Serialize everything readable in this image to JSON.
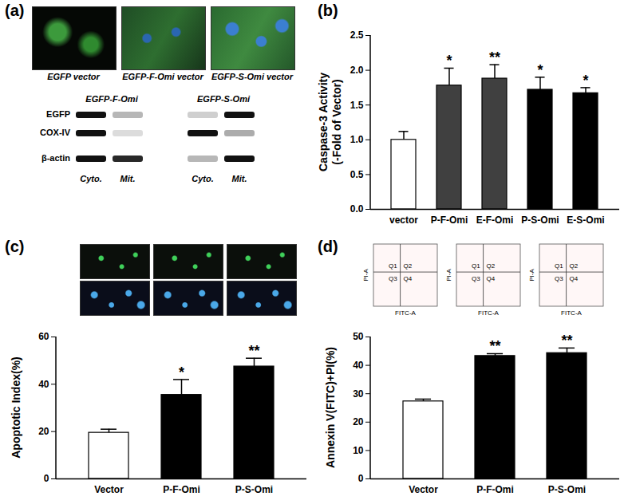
{
  "panel_labels": [
    "(a)",
    "(b)",
    "(c)",
    "(d)"
  ],
  "panel_a": {
    "image_labels": [
      "EGFP vector",
      "EGFP-F-Omi vector",
      "EGFP-S-Omi vector"
    ],
    "blot_rows": [
      "EGFP",
      "COX-IV",
      "β-actin"
    ],
    "blots": [
      {
        "title": "EGFP-F-Omi",
        "lanes": [
          "Cyto.",
          "Mit."
        ],
        "bands": [
          [
            1,
            0.3
          ],
          [
            1,
            0.15
          ],
          [
            1,
            0.9
          ]
        ]
      },
      {
        "title": "EGFP-S-Omi",
        "lanes": [
          "Cyto.",
          "Mit."
        ],
        "bands": [
          [
            0.2,
            1
          ],
          [
            1,
            0.35
          ],
          [
            0.3,
            1
          ]
        ]
      }
    ]
  },
  "flow_plots": {
    "x_label": "FITC-A",
    "y_label": "PI-A",
    "quadrants": [
      "Q1",
      "Q2",
      "Q3",
      "Q4"
    ]
  },
  "chart_data": [
    {
      "type": "bar",
      "ylabel": "Caspase-3  Activity\n(-Fold of Vector)",
      "categories": [
        "vector",
        "P-F-Omi",
        "E-F-Omi",
        "P-S-Omi",
        "E-S-Omi"
      ],
      "values": [
        1.0,
        1.78,
        1.88,
        1.72,
        1.67
      ],
      "errors": [
        0.12,
        0.25,
        0.2,
        0.18,
        0.08
      ],
      "significance": [
        null,
        "*",
        "**",
        "*",
        "*"
      ],
      "colors": [
        "#ffffff",
        "#404040",
        "#404040",
        "#000000",
        "#000000"
      ],
      "ylim": [
        0,
        2.5
      ],
      "yticks": [
        {
          "value": 0,
          "label": "0.0"
        },
        0.5,
        {
          "value": 1,
          "label": "1.0"
        },
        1.5,
        {
          "value": 2,
          "label": "2.0"
        },
        2.5
      ],
      "grid": false
    },
    {
      "type": "bar",
      "ylabel": "Apoptotic Index(%)",
      "categories": [
        "Vector",
        "P-F-Omi",
        "P-S-Omi"
      ],
      "values": [
        19.5,
        35.5,
        47.5
      ],
      "errors": [
        1.5,
        6.5,
        3.5
      ],
      "significance": [
        null,
        "*",
        "**"
      ],
      "colors": [
        "#ffffff",
        "#000000",
        "#000000"
      ],
      "ylim": [
        0,
        60
      ],
      "yticks": [
        0,
        20,
        40,
        60
      ],
      "grid": false
    },
    {
      "type": "bar",
      "ylabel": "Annexin V(FITC)+PI(%)",
      "categories": [
        "Vector",
        "P-F-Omi",
        "P-S-Omi"
      ],
      "values": [
        27.3,
        43.3,
        44.3
      ],
      "errors": [
        0.8,
        0.8,
        1.8
      ],
      "significance": [
        null,
        "**",
        "**"
      ],
      "colors": [
        "#ffffff",
        "#000000",
        "#000000"
      ],
      "ylim": [
        0,
        50
      ],
      "yticks": [
        0,
        10,
        20,
        30,
        40,
        50
      ],
      "grid": false
    }
  ]
}
